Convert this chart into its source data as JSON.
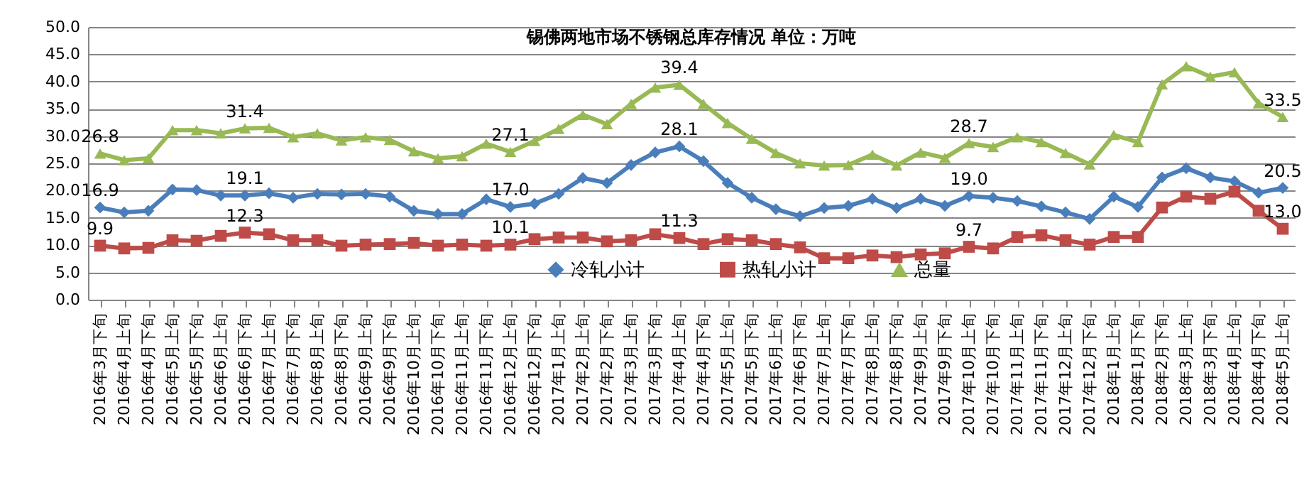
{
  "chart_data": {
    "type": "line",
    "title": "锡佛两地市场不锈钢总库存情况  单位：万吨",
    "categories": [
      "2016年3月下旬",
      "2016年4月上旬",
      "2016年4月下旬",
      "2016年5月上旬",
      "2016年5月下旬",
      "2016年6月上旬",
      "2016年6月下旬",
      "2016年7月上旬",
      "2016年7月下旬",
      "2016年8月上旬",
      "2016年8月下旬",
      "2016年9月上旬",
      "2016年9月下旬",
      "2016年10月上旬",
      "2016年10月下旬",
      "2016年11月上旬",
      "2016年11月下旬",
      "2016年12月上旬",
      "2016年12月下旬",
      "2017年1月上旬",
      "2017年2月上旬",
      "2017年2月下旬",
      "2017年3月上旬",
      "2017年3月下旬",
      "2017年4月上旬",
      "2017年4月下旬",
      "2017年5月上旬",
      "2017年5月下旬",
      "2017年6月上旬",
      "2017年6月下旬",
      "2017年7月上旬",
      "2017年7月下旬",
      "2017年8月上旬",
      "2017年8月下旬",
      "2017年9月上旬",
      "2017年9月下旬",
      "2017年10月上旬",
      "2017年10月下旬",
      "2017年11月上旬",
      "2017年11月下旬",
      "2017年12月上旬",
      "2017年12月下旬",
      "2018年1月上旬",
      "2018年1月下旬",
      "2018年2月下旬",
      "2018年3月上旬",
      "2018年3月下旬",
      "2018年4月上旬",
      "2018年4月下旬",
      "2018年5月上旬"
    ],
    "series": [
      {
        "name": "冷轧小计",
        "color": "#4a7ebb",
        "marker": "diamond",
        "values": [
          16.9,
          16.0,
          16.3,
          20.2,
          20.1,
          19.1,
          19.1,
          19.5,
          18.7,
          19.4,
          19.3,
          19.4,
          18.9,
          16.3,
          15.7,
          15.7,
          18.4,
          17.0,
          17.6,
          19.4,
          22.3,
          21.4,
          24.7,
          27.0,
          28.1,
          25.4,
          21.4,
          18.7,
          16.6,
          15.3,
          16.8,
          17.2,
          18.5,
          16.8,
          18.5,
          17.2,
          19.0,
          18.7,
          18.1,
          17.1,
          16.0,
          14.8,
          18.9,
          17.0,
          22.4,
          24.1,
          22.4,
          21.7,
          19.6,
          20.5
        ],
        "value_labels": [
          "16.9",
          null,
          null,
          null,
          null,
          null,
          "19.1",
          null,
          null,
          null,
          null,
          null,
          null,
          null,
          null,
          null,
          null,
          "17.0",
          null,
          null,
          null,
          null,
          null,
          null,
          "28.1",
          null,
          null,
          null,
          null,
          null,
          null,
          null,
          null,
          null,
          null,
          null,
          "19.0",
          null,
          null,
          null,
          null,
          null,
          null,
          null,
          null,
          null,
          null,
          null,
          null,
          "20.5"
        ]
      },
      {
        "name": "热轧小计",
        "color": "#be4b48",
        "marker": "square",
        "values": [
          9.9,
          9.4,
          9.5,
          10.9,
          10.8,
          11.7,
          12.3,
          12.0,
          10.9,
          10.9,
          9.9,
          10.1,
          10.2,
          10.4,
          9.9,
          10.1,
          9.9,
          10.1,
          11.1,
          11.4,
          11.4,
          10.7,
          10.9,
          12.0,
          11.3,
          10.2,
          11.1,
          10.9,
          10.2,
          9.6,
          7.6,
          7.6,
          8.1,
          7.8,
          8.3,
          8.5,
          9.7,
          9.4,
          11.5,
          11.8,
          10.9,
          10.1,
          11.5,
          11.5,
          16.9,
          18.9,
          18.5,
          19.8,
          16.3,
          13.0
        ],
        "value_labels": [
          "9.9",
          null,
          null,
          null,
          null,
          null,
          "12.3",
          null,
          null,
          null,
          null,
          null,
          null,
          null,
          null,
          null,
          null,
          "10.1",
          null,
          null,
          null,
          null,
          null,
          null,
          "11.3",
          null,
          null,
          null,
          null,
          null,
          null,
          null,
          null,
          null,
          null,
          null,
          "9.7",
          null,
          null,
          null,
          null,
          null,
          null,
          null,
          null,
          null,
          null,
          null,
          null,
          "13.0"
        ]
      },
      {
        "name": "总量",
        "color": "#98b954",
        "marker": "triangle",
        "values": [
          26.8,
          25.6,
          25.9,
          31.1,
          31.1,
          30.5,
          31.4,
          31.5,
          29.8,
          30.5,
          29.2,
          29.8,
          29.3,
          27.2,
          25.9,
          26.3,
          28.6,
          27.1,
          29.1,
          31.3,
          33.9,
          32.2,
          35.9,
          38.9,
          39.4,
          35.9,
          32.4,
          29.5,
          26.9,
          25.0,
          24.6,
          24.7,
          26.6,
          24.6,
          27.0,
          26.0,
          28.7,
          28.0,
          29.8,
          28.9,
          26.9,
          24.8,
          30.2,
          28.9,
          39.5,
          42.8,
          40.9,
          41.7,
          36.0,
          33.5
        ],
        "value_labels": [
          "26.8",
          null,
          null,
          null,
          null,
          null,
          "31.4",
          null,
          null,
          null,
          null,
          null,
          null,
          null,
          null,
          null,
          null,
          "27.1",
          null,
          null,
          null,
          null,
          null,
          null,
          "39.4",
          null,
          null,
          null,
          null,
          null,
          null,
          null,
          null,
          null,
          null,
          null,
          "28.7",
          null,
          null,
          null,
          null,
          null,
          null,
          null,
          null,
          null,
          null,
          null,
          null,
          "33.5"
        ]
      }
    ],
    "ylim": [
      0,
      50
    ],
    "yticks": [
      {
        "value": 0,
        "label": "0.0"
      },
      {
        "value": 5,
        "label": "5.0"
      },
      {
        "value": 10,
        "label": "10.0"
      },
      {
        "value": 15,
        "label": "15.0"
      },
      {
        "value": 20,
        "label": "20.0"
      },
      {
        "value": 25,
        "label": "25.0"
      },
      {
        "value": 30,
        "label": "30.0"
      },
      {
        "value": 35,
        "label": "35.0"
      },
      {
        "value": 40,
        "label": "40.0"
      },
      {
        "value": 45,
        "label": "45.0"
      },
      {
        "value": 50,
        "label": "50.0"
      }
    ],
    "grid": "y",
    "legend": "bottom"
  }
}
